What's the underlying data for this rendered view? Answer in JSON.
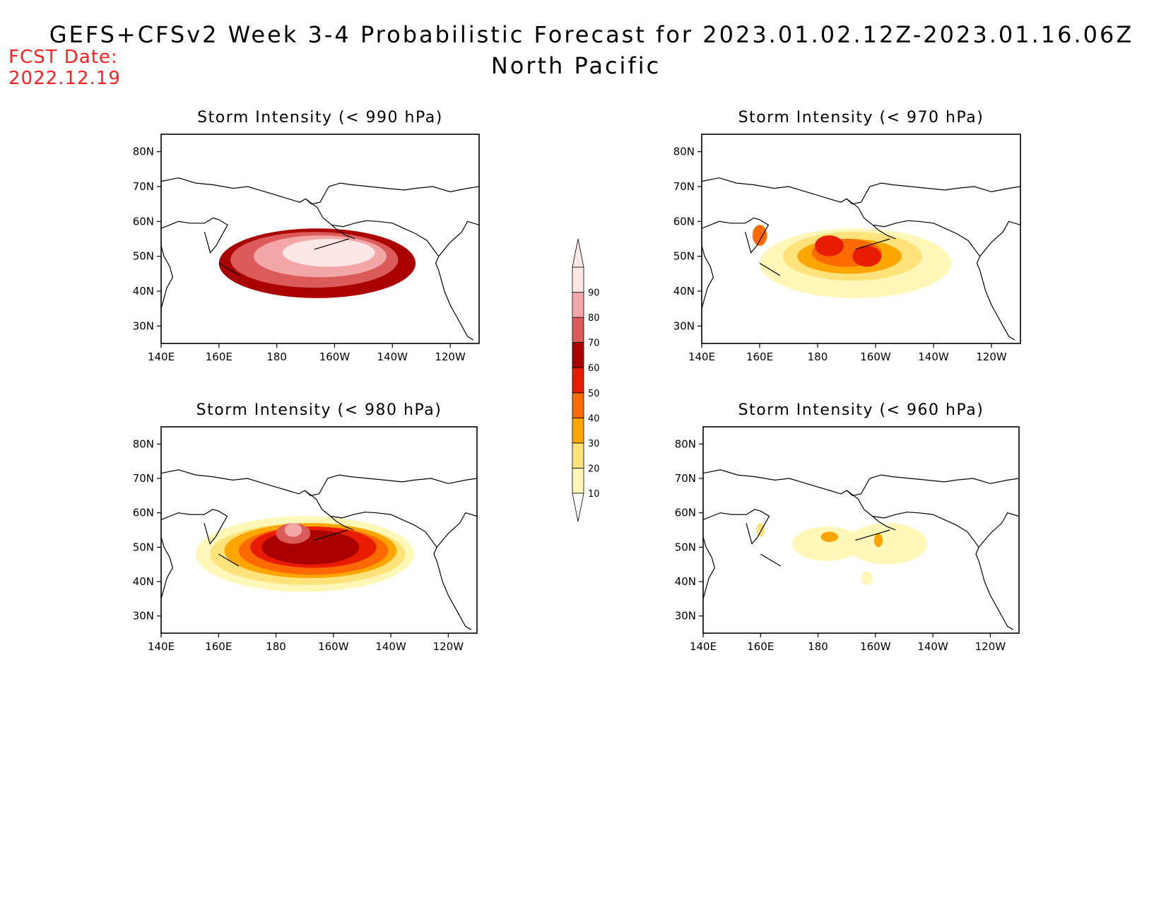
{
  "header": {
    "title": "GEFS+CFSv2 Week 3-4 Probabilistic Forecast for 2023.01.02.12Z-2023.01.16.06Z",
    "region": "North Pacific",
    "fcst_label": "FCST Date:",
    "fcst_date": "2022.12.19"
  },
  "axes": {
    "lon_labels": [
      "140E",
      "160E",
      "180",
      "160W",
      "140W",
      "120W"
    ],
    "lat_labels": [
      "80N",
      "70N",
      "60N",
      "50N",
      "40N",
      "30N"
    ],
    "lon_range": [
      140,
      250
    ],
    "lat_range": [
      25,
      85
    ]
  },
  "colorbar": {
    "levels": [
      "10",
      "20",
      "30",
      "40",
      "50",
      "60",
      "70",
      "80",
      "90"
    ],
    "colors": [
      "#fff7b8",
      "#ffe27a",
      "#ffa500",
      "#ff6a00",
      "#e81c00",
      "#aa0000",
      "#db5a5a",
      "#f2a6a6",
      "#fde6e6"
    ]
  },
  "chart_data": [
    {
      "type": "heatmap",
      "panel": "top-left",
      "title": "Storm Intensity (< 990 hPa)",
      "blobs": [
        {
          "lon": 194,
          "lat": 48,
          "rx": 34,
          "ry": 10,
          "level": 5
        },
        {
          "lon": 193,
          "lat": 49,
          "rx": 29,
          "ry": 8,
          "level": 6
        },
        {
          "lon": 195,
          "lat": 50,
          "rx": 23,
          "ry": 6,
          "level": 7
        },
        {
          "lon": 198,
          "lat": 51,
          "rx": 16,
          "ry": 4,
          "level": 8
        }
      ]
    },
    {
      "type": "heatmap",
      "panel": "top-right",
      "title": "Storm Intensity (< 970 hPa)",
      "blobs": [
        {
          "lon": 193,
          "lat": 48,
          "rx": 33,
          "ry": 10,
          "level": 0
        },
        {
          "lon": 192,
          "lat": 50,
          "rx": 24,
          "ry": 7,
          "level": 1
        },
        {
          "lon": 191,
          "lat": 50,
          "rx": 18,
          "ry": 5,
          "level": 2
        },
        {
          "lon": 190,
          "lat": 51,
          "rx": 12,
          "ry": 4,
          "level": 3
        },
        {
          "lon": 184,
          "lat": 53,
          "rx": 5,
          "ry": 3,
          "level": 4
        },
        {
          "lon": 197,
          "lat": 50,
          "rx": 5,
          "ry": 3,
          "level": 4
        },
        {
          "lon": 160,
          "lat": 56,
          "rx": 2.5,
          "ry": 3,
          "level": 3
        }
      ]
    },
    {
      "type": "heatmap",
      "panel": "bottom-left",
      "title": "Storm Intensity (< 980 hPa)",
      "blobs": [
        {
          "lon": 190,
          "lat": 48,
          "rx": 38,
          "ry": 11,
          "level": 0
        },
        {
          "lon": 191,
          "lat": 48,
          "rx": 34,
          "ry": 9,
          "level": 1
        },
        {
          "lon": 192,
          "lat": 49,
          "rx": 30,
          "ry": 8,
          "level": 2
        },
        {
          "lon": 193,
          "lat": 49,
          "rx": 26,
          "ry": 7,
          "level": 3
        },
        {
          "lon": 193,
          "lat": 50,
          "rx": 22,
          "ry": 6,
          "level": 4
        },
        {
          "lon": 192,
          "lat": 50,
          "rx": 17,
          "ry": 5,
          "level": 5
        },
        {
          "lon": 186,
          "lat": 54,
          "rx": 6,
          "ry": 3,
          "level": 6
        },
        {
          "lon": 186,
          "lat": 55,
          "rx": 3,
          "ry": 2,
          "level": 7
        }
      ]
    },
    {
      "type": "heatmap",
      "panel": "bottom-right",
      "title": "Storm Intensity (< 960 hPa)",
      "blobs": [
        {
          "lon": 183,
          "lat": 51,
          "rx": 12,
          "ry": 5,
          "level": 0
        },
        {
          "lon": 204,
          "lat": 51,
          "rx": 14,
          "ry": 6,
          "level": 0
        },
        {
          "lon": 197,
          "lat": 41,
          "rx": 2,
          "ry": 2,
          "level": 0
        },
        {
          "lon": 184,
          "lat": 53,
          "rx": 3,
          "ry": 1.5,
          "level": 2
        },
        {
          "lon": 201,
          "lat": 52,
          "rx": 1.5,
          "ry": 2,
          "level": 2
        },
        {
          "lon": 160,
          "lat": 55,
          "rx": 1.5,
          "ry": 2,
          "level": 1
        }
      ]
    }
  ]
}
